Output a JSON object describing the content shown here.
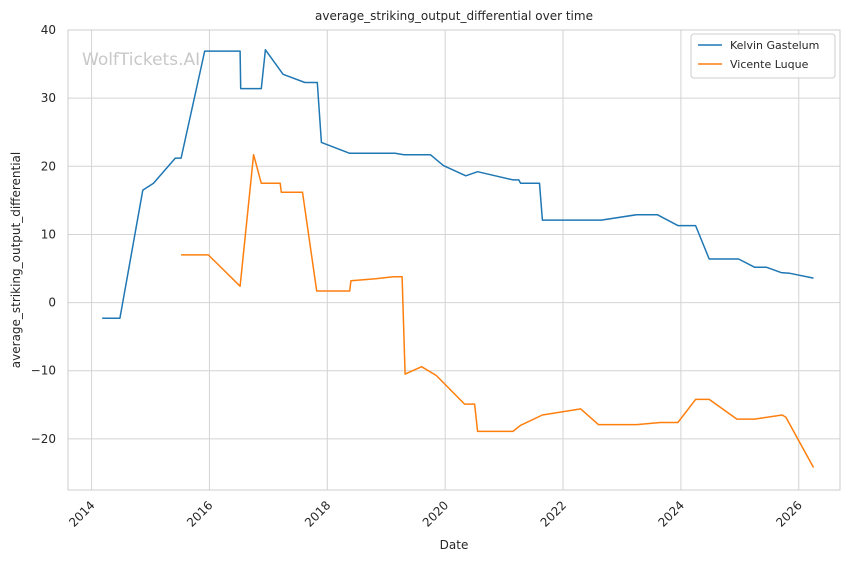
{
  "chart_data": {
    "type": "line",
    "title": "average_striking_output_differential over time",
    "xlabel": "Date",
    "ylabel": "average_striking_output_differential",
    "watermark": "WolfTickets.AI",
    "x_ticks": [
      "2014",
      "2016",
      "2018",
      "2020",
      "2022",
      "2024",
      "2026"
    ],
    "y_ticks": [
      "−20",
      "−10",
      "0",
      "10",
      "20",
      "30",
      "40"
    ],
    "xlim": [
      2013.6,
      2026.7
    ],
    "ylim": [
      -27.5,
      40
    ],
    "grid": true,
    "legend_position": "top-right",
    "series": [
      {
        "name": "Kelvin Gastelum",
        "color": "#1f77b4",
        "points": [
          [
            2014.18,
            -2.3
          ],
          [
            2014.48,
            -2.3
          ],
          [
            2014.87,
            16.5
          ],
          [
            2015.05,
            17.5
          ],
          [
            2015.42,
            21.2
          ],
          [
            2015.52,
            21.2
          ],
          [
            2015.92,
            36.9
          ],
          [
            2016.52,
            36.9
          ],
          [
            2016.53,
            31.4
          ],
          [
            2016.88,
            31.4
          ],
          [
            2016.95,
            37.1
          ],
          [
            2017.25,
            33.5
          ],
          [
            2017.62,
            32.3
          ],
          [
            2017.83,
            32.3
          ],
          [
            2017.9,
            23.5
          ],
          [
            2018.38,
            21.9
          ],
          [
            2019.15,
            21.9
          ],
          [
            2019.3,
            21.7
          ],
          [
            2019.75,
            21.7
          ],
          [
            2019.97,
            20.1
          ],
          [
            2020.35,
            18.6
          ],
          [
            2020.55,
            19.2
          ],
          [
            2021.15,
            18.0
          ],
          [
            2021.25,
            18.0
          ],
          [
            2021.28,
            17.5
          ],
          [
            2021.6,
            17.5
          ],
          [
            2021.65,
            12.1
          ],
          [
            2022.65,
            12.1
          ],
          [
            2023.25,
            12.9
          ],
          [
            2023.6,
            12.9
          ],
          [
            2023.95,
            11.3
          ],
          [
            2024.25,
            11.3
          ],
          [
            2024.48,
            6.4
          ],
          [
            2024.98,
            6.4
          ],
          [
            2025.25,
            5.2
          ],
          [
            2025.45,
            5.2
          ],
          [
            2025.7,
            4.4
          ],
          [
            2025.85,
            4.3
          ],
          [
            2026.25,
            3.6
          ]
        ]
      },
      {
        "name": "Vicente Luque",
        "color": "#ff7f0e",
        "points": [
          [
            2015.52,
            7.0
          ],
          [
            2015.98,
            7.0
          ],
          [
            2016.52,
            2.4
          ],
          [
            2016.75,
            21.7
          ],
          [
            2016.88,
            17.5
          ],
          [
            2017.2,
            17.5
          ],
          [
            2017.22,
            16.2
          ],
          [
            2017.58,
            16.2
          ],
          [
            2017.82,
            1.7
          ],
          [
            2018.38,
            1.7
          ],
          [
            2018.4,
            3.2
          ],
          [
            2018.82,
            3.5
          ],
          [
            2019.12,
            3.8
          ],
          [
            2019.27,
            3.8
          ],
          [
            2019.32,
            -10.5
          ],
          [
            2019.6,
            -9.4
          ],
          [
            2019.85,
            -10.7
          ],
          [
            2020.33,
            -14.9
          ],
          [
            2020.5,
            -14.9
          ],
          [
            2020.55,
            -18.9
          ],
          [
            2021.15,
            -18.9
          ],
          [
            2021.28,
            -18.0
          ],
          [
            2021.65,
            -16.5
          ],
          [
            2022.3,
            -15.6
          ],
          [
            2022.6,
            -17.9
          ],
          [
            2023.25,
            -17.9
          ],
          [
            2023.65,
            -17.6
          ],
          [
            2023.95,
            -17.6
          ],
          [
            2024.25,
            -14.2
          ],
          [
            2024.48,
            -14.2
          ],
          [
            2024.95,
            -17.1
          ],
          [
            2025.25,
            -17.1
          ],
          [
            2025.72,
            -16.5
          ],
          [
            2025.78,
            -16.8
          ],
          [
            2026.25,
            -24.2
          ]
        ]
      }
    ]
  }
}
